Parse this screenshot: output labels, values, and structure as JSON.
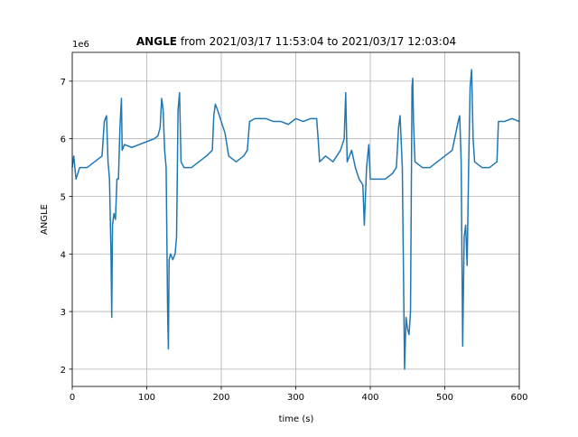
{
  "chart_data": {
    "type": "line",
    "title_bold": "ANGLE",
    "title": "from 2021/03/17 11:53:04 to 2021/03/17 12:03:04",
    "x_label": "time (s)",
    "y_label": "ANGLE",
    "y_offset_label": "1e6",
    "xlim": [
      0,
      600
    ],
    "ylim": [
      1.7,
      7.5
    ],
    "xticks": [
      0,
      100,
      200,
      300,
      400,
      500,
      600
    ],
    "yticks": [
      2,
      3,
      4,
      5,
      6,
      7
    ],
    "grid": true,
    "series": [
      {
        "name": "ANGLE",
        "color": "#1f77b4",
        "x": [
          0,
          2,
          5,
          10,
          20,
          30,
          40,
          43,
          46,
          48,
          50,
          52,
          53,
          54,
          56,
          58,
          60,
          62,
          64,
          66,
          67,
          70,
          80,
          90,
          100,
          110,
          115,
          118,
          120,
          122,
          124,
          126,
          128,
          129,
          130,
          132,
          135,
          138,
          140,
          142,
          144,
          146,
          150,
          160,
          170,
          180,
          188,
          190,
          192,
          195,
          200,
          205,
          210,
          220,
          230,
          235,
          238,
          245,
          260,
          270,
          280,
          290,
          300,
          310,
          320,
          328,
          330,
          332,
          340,
          350,
          360,
          365,
          367,
          369,
          375,
          380,
          385,
          390,
          392,
          395,
          398,
          400,
          410,
          420,
          430,
          435,
          438,
          440,
          443,
          446,
          448,
          450,
          452,
          454,
          456,
          457,
          458,
          460,
          470,
          480,
          490,
          500,
          510,
          518,
          520,
          522,
          524,
          526,
          528,
          530,
          532,
          534,
          536,
          538,
          540,
          550,
          560,
          570,
          572,
          580,
          590,
          600
        ],
        "values": [
          5.5,
          5.7,
          5.3,
          5.5,
          5.5,
          5.6,
          5.7,
          6.3,
          6.4,
          5.6,
          5.3,
          4.0,
          2.9,
          4.5,
          4.7,
          4.6,
          5.3,
          5.3,
          6.2,
          6.7,
          5.8,
          5.9,
          5.85,
          5.9,
          5.95,
          6.0,
          6.05,
          6.2,
          6.7,
          6.5,
          5.8,
          5.5,
          3.0,
          2.35,
          3.9,
          4.0,
          3.9,
          4.0,
          4.3,
          6.5,
          6.8,
          5.6,
          5.5,
          5.5,
          5.6,
          5.7,
          5.8,
          6.4,
          6.6,
          6.5,
          6.3,
          6.1,
          5.7,
          5.6,
          5.7,
          5.8,
          6.3,
          6.35,
          6.35,
          6.3,
          6.3,
          6.25,
          6.35,
          6.3,
          6.35,
          6.35,
          6.0,
          5.6,
          5.7,
          5.6,
          5.8,
          6.0,
          6.8,
          5.6,
          5.8,
          5.5,
          5.3,
          5.2,
          4.5,
          5.5,
          5.9,
          5.3,
          5.3,
          5.3,
          5.4,
          5.5,
          6.2,
          6.4,
          5.5,
          2.0,
          2.9,
          2.7,
          2.6,
          3.0,
          6.9,
          7.05,
          6.3,
          5.6,
          5.5,
          5.5,
          5.6,
          5.7,
          5.8,
          6.3,
          6.4,
          5.6,
          2.4,
          4.3,
          4.5,
          3.8,
          5.5,
          6.9,
          7.2,
          6.0,
          5.6,
          5.5,
          5.5,
          5.6,
          6.3,
          6.3,
          6.35,
          6.3
        ]
      }
    ]
  }
}
